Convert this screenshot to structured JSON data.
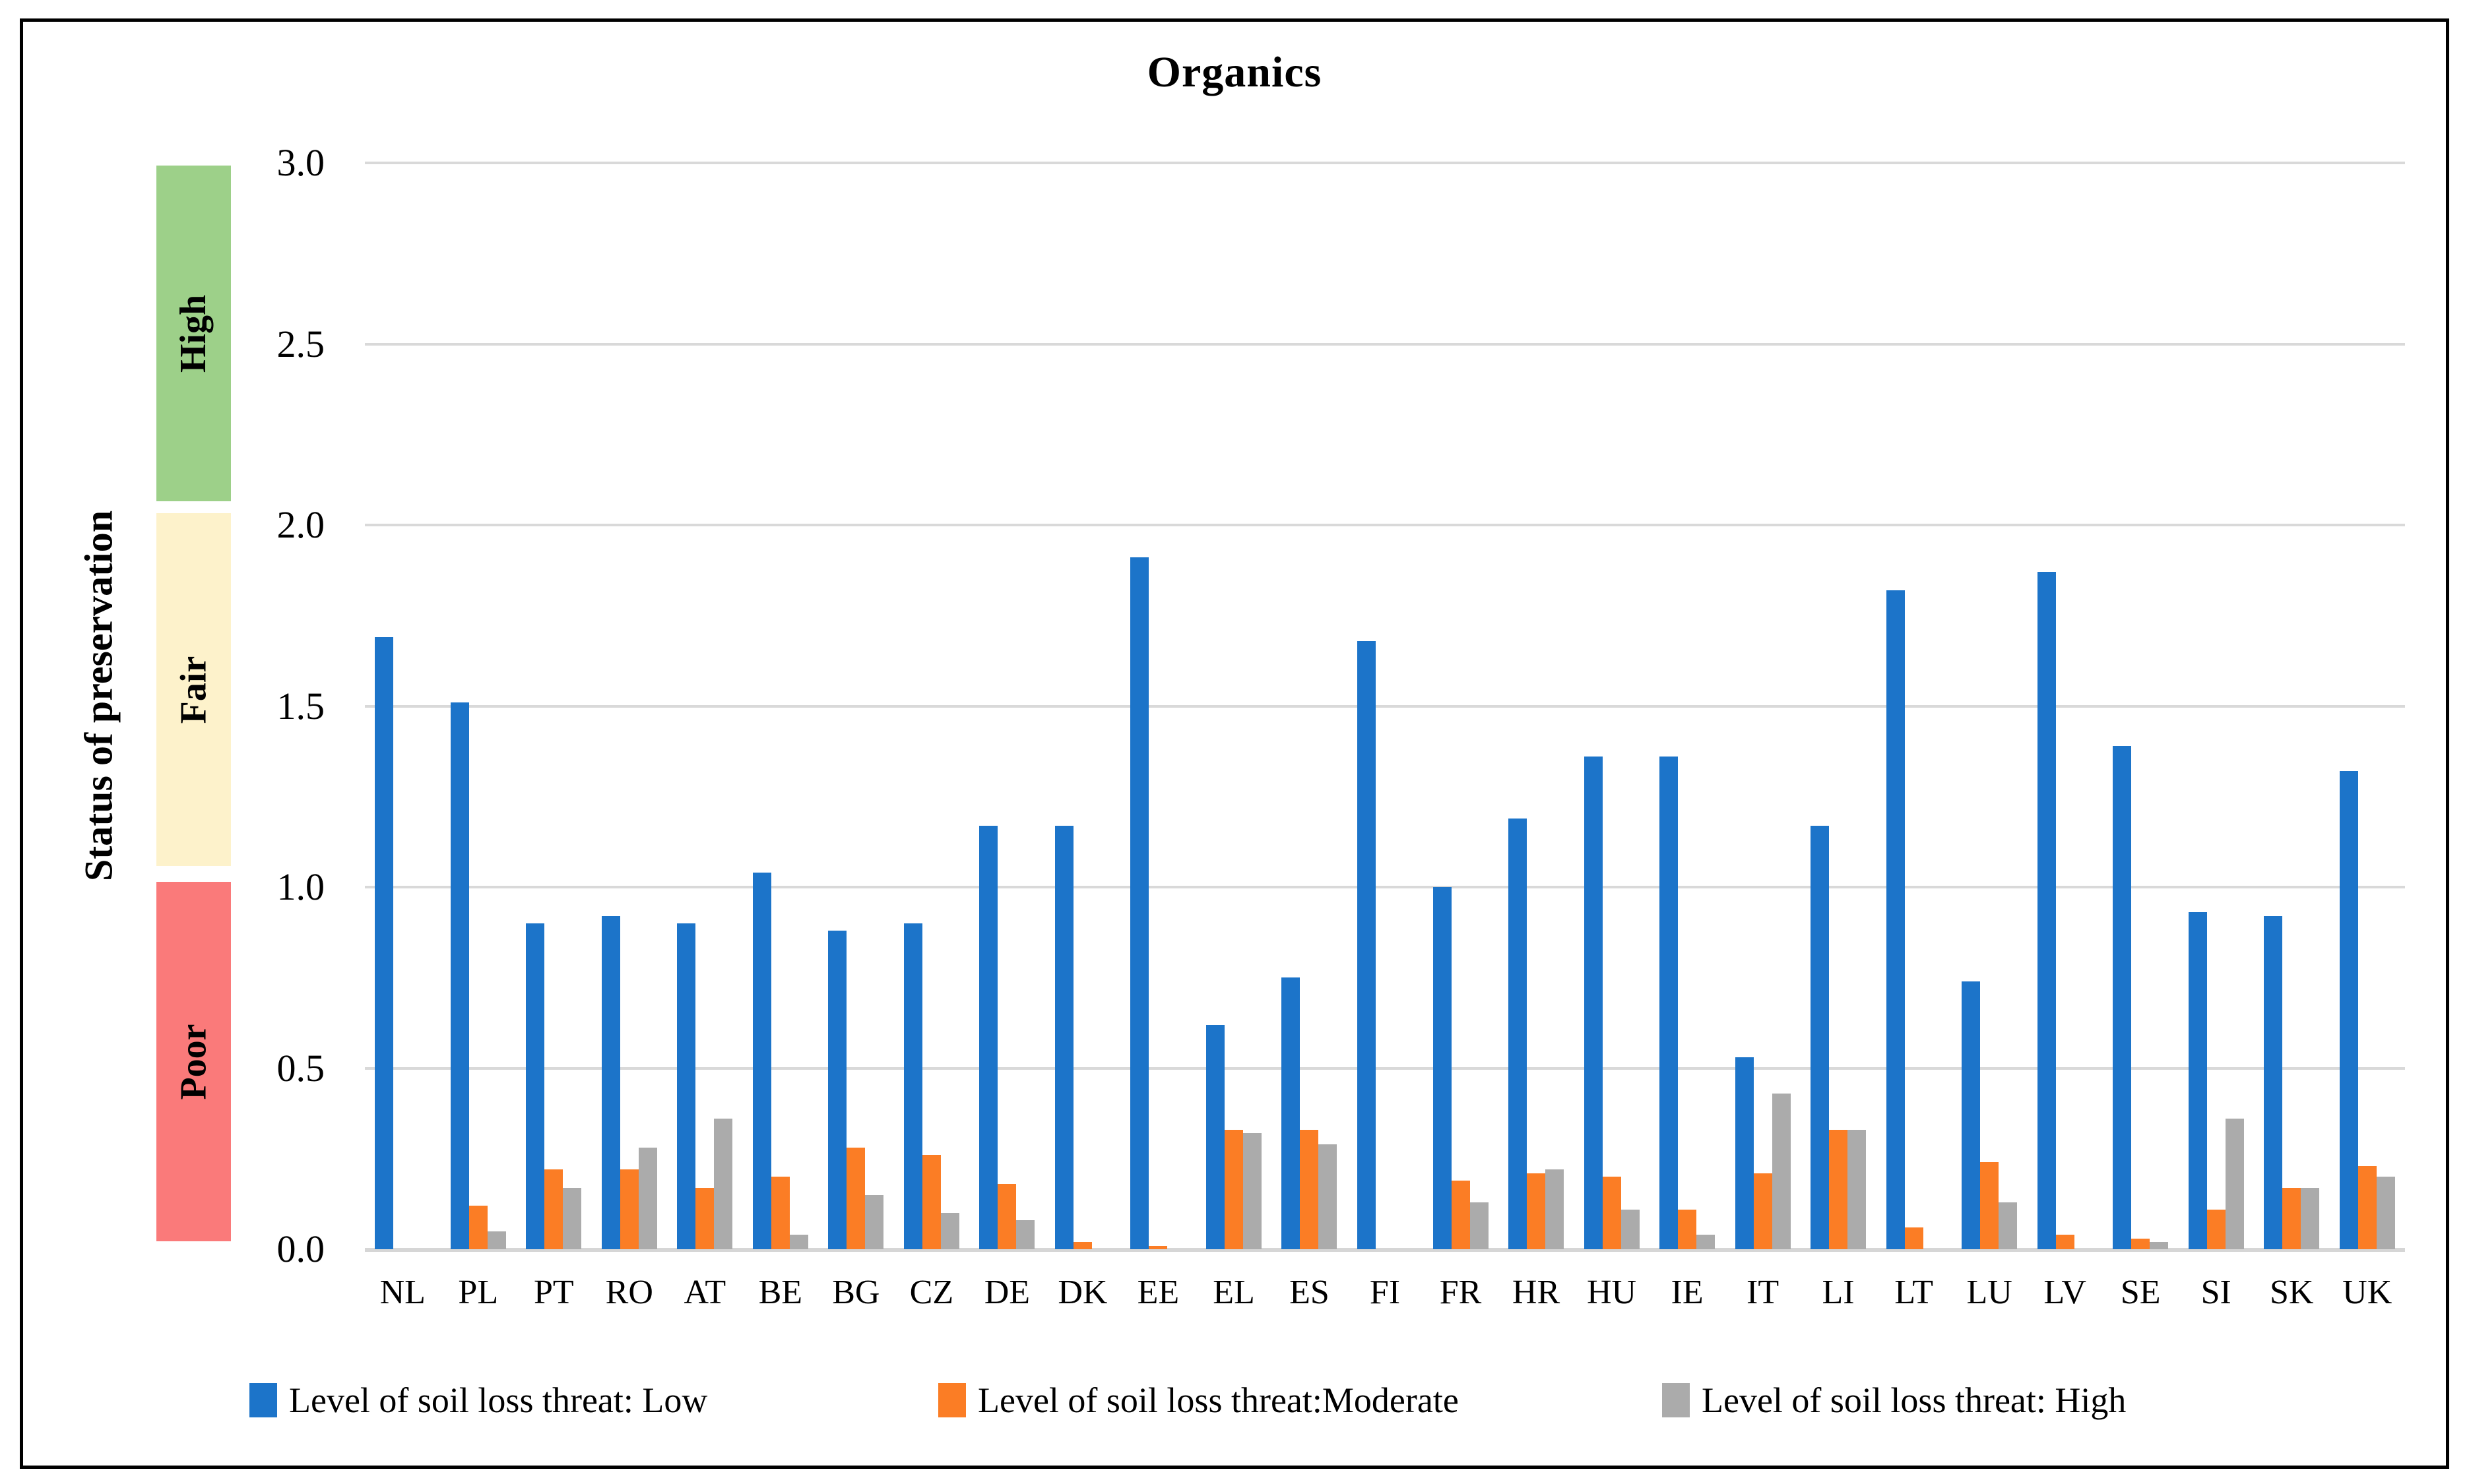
{
  "title": "Organics",
  "y_axis": {
    "title": "Status of preservation",
    "min": 0.0,
    "max": 3.0,
    "ticks": [
      {
        "value": 3.0,
        "label": "3.0"
      },
      {
        "value": 2.5,
        "label": "2.5"
      },
      {
        "value": 2.0,
        "label": "2.0"
      },
      {
        "value": 1.5,
        "label": "1.5"
      },
      {
        "value": 1.0,
        "label": "1.0"
      },
      {
        "value": 0.5,
        "label": "0.5"
      },
      {
        "value": 0.0,
        "label": "0.0"
      }
    ]
  },
  "bands": [
    {
      "label": "High",
      "from": 2.0,
      "to": 3.0,
      "color": "#9DD089"
    },
    {
      "label": "Fair",
      "from": 1.0,
      "to": 2.0,
      "color": "#FDF2CB"
    },
    {
      "label": "Poor",
      "from": 0.0,
      "to": 1.0,
      "color": "#FA7A7A"
    }
  ],
  "legend": [
    {
      "label": "Level of soil loss threat: Low",
      "color": "#1C74C9"
    },
    {
      "label": "Level of soil loss threat:Moderate",
      "color": "#FB7D25"
    },
    {
      "label": "Level of soil loss threat: High",
      "color": "#ABABAB"
    }
  ],
  "chart_data": {
    "type": "bar",
    "title": "Organics",
    "xlabel": "",
    "ylabel": "Status of preservation",
    "ylim": [
      0.0,
      3.0
    ],
    "grid": true,
    "legend_position": "bottom",
    "categories": [
      "NL",
      "PL",
      "PT",
      "RO",
      "AT",
      "BE",
      "BG",
      "CZ",
      "DE",
      "DK",
      "EE",
      "EL",
      "ES",
      "FI",
      "FR",
      "HR",
      "HU",
      "IE",
      "IT",
      "LI",
      "LT",
      "LU",
      "LV",
      "SE",
      "SI",
      "SK",
      "UK"
    ],
    "series": [
      {
        "name": "Level of soil loss threat: Low",
        "color": "#1C74C9",
        "values": [
          1.69,
          1.51,
          0.9,
          0.92,
          0.9,
          1.04,
          0.88,
          0.9,
          1.17,
          1.17,
          1.91,
          0.62,
          0.75,
          1.68,
          1.0,
          1.19,
          1.36,
          1.36,
          0.53,
          1.17,
          1.82,
          0.74,
          1.87,
          1.39,
          0.93,
          0.92,
          1.32
        ]
      },
      {
        "name": "Level of soil loss threat:Moderate",
        "color": "#FB7D25",
        "values": [
          0,
          0.12,
          0.22,
          0.22,
          0.17,
          0.2,
          0.28,
          0.26,
          0.18,
          0.02,
          0.01,
          0.33,
          0.33,
          0,
          0.19,
          0.21,
          0.2,
          0.11,
          0.21,
          0.33,
          0.06,
          0.24,
          0.04,
          0.03,
          0.11,
          0.17,
          0.23
        ]
      },
      {
        "name": "Level of soil loss threat: High",
        "color": "#ABABAB",
        "values": [
          0,
          0.05,
          0.17,
          0.28,
          0.36,
          0.04,
          0.15,
          0.1,
          0.08,
          0,
          0,
          0.32,
          0.29,
          0,
          0.13,
          0.22,
          0.11,
          0.04,
          0.43,
          0.33,
          0,
          0.13,
          0,
          0.02,
          0.36,
          0.17,
          0.2
        ]
      }
    ]
  },
  "colors": {
    "gridline": "#D9D9D9",
    "border": "#000000",
    "background": "#FFFFFF"
  }
}
